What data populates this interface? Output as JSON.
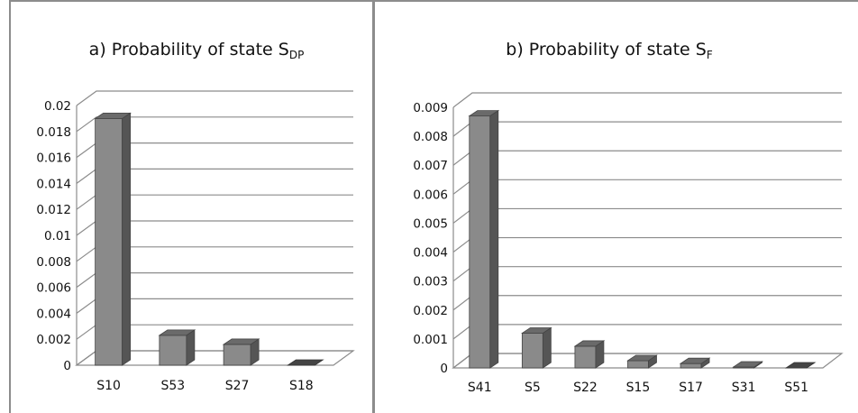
{
  "colors": {
    "grid": "#8c8c8c",
    "bar_front": "#8a8a8a",
    "bar_top": "#6a6a6a",
    "bar_side": "#555555",
    "text": "#111111",
    "divider": "#8c8c8c"
  },
  "chart_data": [
    {
      "type": "bar",
      "title_main": "a) Probability of state S",
      "title_sub": "DP",
      "categories": [
        "S10",
        "S53",
        "S27",
        "S18"
      ],
      "values": [
        0.019,
        0.0023,
        0.0016,
        0.0
      ],
      "ylim": [
        0,
        0.02
      ],
      "yticks": [
        "0",
        "0.002",
        "0.004",
        "0.006",
        "0.008",
        "0.01",
        "0.012",
        "0.014",
        "0.016",
        "0.018",
        "0.02"
      ],
      "grid": true
    },
    {
      "type": "bar",
      "title_main": "b) Probability of state S",
      "title_sub": "F",
      "categories": [
        "S41",
        "S5",
        "S22",
        "S15",
        "S17",
        "S31",
        "S51"
      ],
      "values": [
        0.0087,
        0.0012,
        0.00075,
        0.00025,
        0.00015,
        3e-05,
        0.0
      ],
      "ylim": [
        0,
        0.009
      ],
      "yticks": [
        "0",
        "0.001",
        "0.002",
        "0.003",
        "0.004",
        "0.005",
        "0.006",
        "0.007",
        "0.008",
        "0.009"
      ],
      "grid": true
    }
  ]
}
